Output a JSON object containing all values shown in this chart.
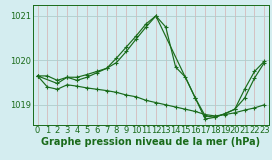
{
  "title": "Graphe pression niveau de la mer (hPa)",
  "bg_color": "#d4edf0",
  "line_color": "#1a6b1a",
  "horiz_grid_color": "#b0cccc",
  "vert_grid_color": "#d4b0b0",
  "xlim": [
    -0.5,
    23.5
  ],
  "ylim": [
    1018.55,
    1021.25
  ],
  "yticks": [
    1019,
    1020,
    1021
  ],
  "xticks": [
    0,
    1,
    2,
    3,
    4,
    5,
    6,
    7,
    8,
    9,
    10,
    11,
    12,
    13,
    14,
    15,
    16,
    17,
    18,
    19,
    20,
    21,
    22,
    23
  ],
  "line1_x": [
    0,
    1,
    2,
    3,
    4,
    5,
    6,
    7,
    8,
    9,
    10,
    11,
    12,
    13,
    14,
    15,
    16,
    17,
    18,
    19,
    20,
    21,
    22,
    23
  ],
  "line1_y": [
    1019.65,
    1019.65,
    1019.55,
    1019.62,
    1019.62,
    1019.68,
    1019.75,
    1019.82,
    1020.05,
    1020.3,
    1020.55,
    1020.82,
    1021.0,
    1020.75,
    1019.85,
    1019.62,
    1019.15,
    1018.75,
    1018.72,
    1018.8,
    1018.9,
    1019.15,
    1019.6,
    1019.95
  ],
  "line2_x": [
    0,
    1,
    2,
    3,
    4,
    5,
    6,
    7,
    8,
    9,
    10,
    11,
    12,
    13,
    14,
    15,
    16,
    17,
    18,
    19,
    20,
    21,
    22,
    23
  ],
  "line2_y": [
    1019.65,
    1019.4,
    1019.35,
    1019.45,
    1019.42,
    1019.38,
    1019.35,
    1019.32,
    1019.28,
    1019.22,
    1019.18,
    1019.1,
    1019.05,
    1019.0,
    1018.95,
    1018.9,
    1018.85,
    1018.78,
    1018.75,
    1018.78,
    1018.82,
    1018.88,
    1018.93,
    1019.0
  ],
  "line3_x": [
    0,
    2,
    3,
    4,
    5,
    6,
    7,
    8,
    9,
    10,
    11,
    12,
    16,
    17,
    18,
    19,
    20,
    21,
    22,
    23
  ],
  "line3_y": [
    1019.65,
    1019.48,
    1019.62,
    1019.55,
    1019.62,
    1019.72,
    1019.82,
    1019.95,
    1020.2,
    1020.48,
    1020.75,
    1021.0,
    1019.15,
    1018.68,
    1018.72,
    1018.8,
    1018.9,
    1019.35,
    1019.75,
    1019.98
  ],
  "tick_fontsize": 6.0,
  "label_fontsize": 7.0
}
